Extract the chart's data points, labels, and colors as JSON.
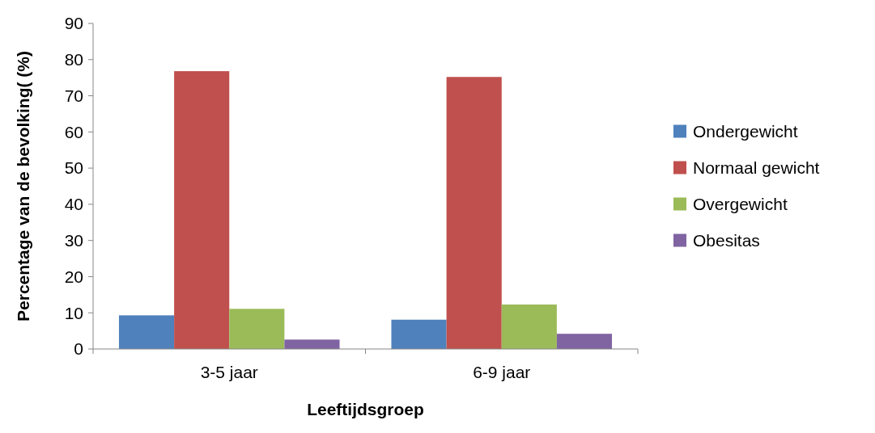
{
  "chart_data": {
    "type": "bar",
    "xlabel": "Leeftijdsgroep",
    "ylabel": "Percentage van de bevolking( (%)",
    "categories": [
      "3-5 jaar",
      "6-9 jaar"
    ],
    "series": [
      {
        "name": "Ondergewicht",
        "color": "#4f81bd",
        "values": [
          9.3,
          8.1
        ]
      },
      {
        "name": "Normaal gewicht",
        "color": "#c0504d",
        "values": [
          76.8,
          75.2
        ]
      },
      {
        "name": "Overgewicht",
        "color": "#9bbb59",
        "values": [
          11.1,
          12.3
        ]
      },
      {
        "name": "Obesitas",
        "color": "#8064a2",
        "values": [
          2.6,
          4.2
        ]
      }
    ],
    "ylim": [
      0,
      90
    ],
    "yticks": [
      0,
      10,
      20,
      30,
      40,
      50,
      60,
      70,
      80,
      90
    ],
    "grid": false,
    "legend": "right"
  }
}
